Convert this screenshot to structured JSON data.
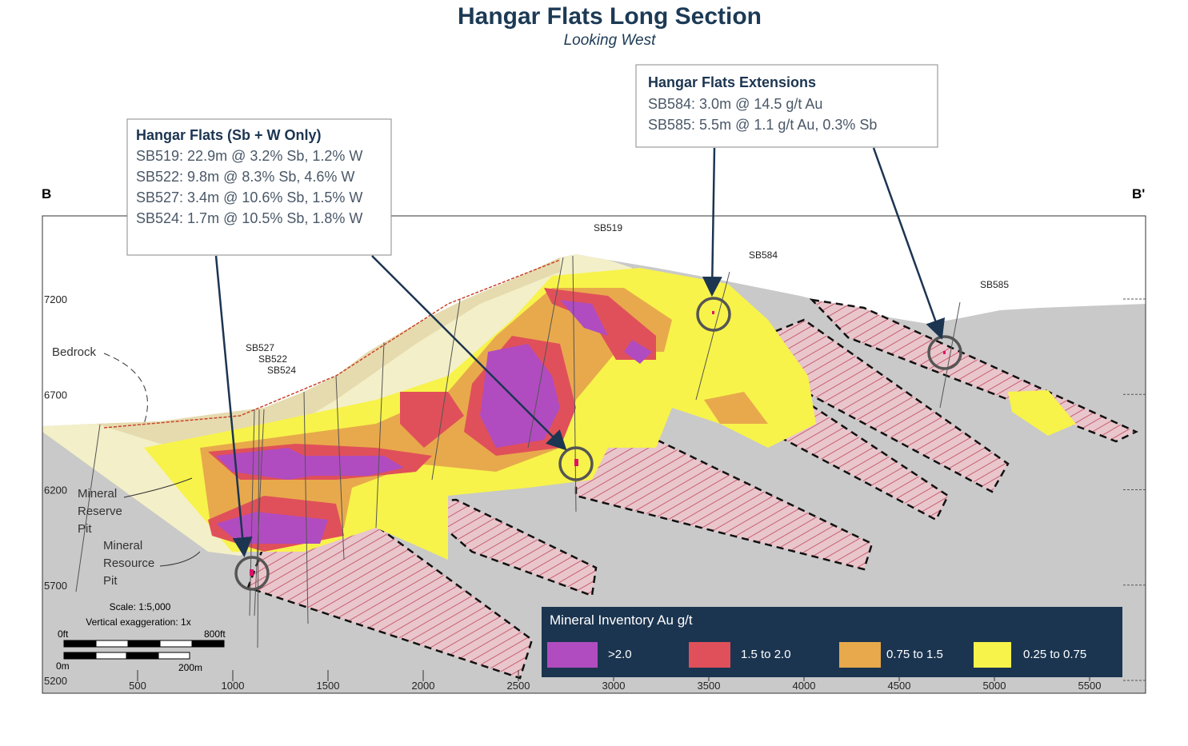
{
  "title": "Hangar Flats Long Section",
  "subtitle": "Looking West",
  "section_ends": [
    "B",
    "B'"
  ],
  "elevation_labels": [
    7200,
    6700,
    6200,
    5700,
    5200
  ],
  "distance_labels": [
    500,
    1000,
    1500,
    2000,
    2500,
    3000,
    3500,
    4000,
    4500,
    5000,
    5500
  ],
  "callouts": [
    {
      "title": "Hangar Flats (Sb + W Only)",
      "lines": [
        "SB519: 22.9m @ 3.2% Sb, 1.2% W",
        "SB522: 9.8m @ 8.3% Sb, 4.6% W",
        "SB527: 3.4m @ 10.6% Sb, 1.5% W",
        "SB524: 1.7m @ 10.5% Sb, 1.8% W"
      ]
    },
    {
      "title": "Hangar Flats Extensions",
      "lines": [
        "SB584: 3.0m @ 14.5 g/t Au",
        "SB585: 5.5m @ 1.1 g/t Au, 0.3% Sb"
      ]
    }
  ],
  "drill_holes": [
    "SB519",
    "SB584",
    "SB585",
    "SB527",
    "SB522",
    "SB524"
  ],
  "annotations": {
    "bedrock": "Bedrock",
    "reserve_pit": [
      "Mineral",
      "Reserve",
      "Pit"
    ],
    "resource_pit": [
      "Mineral",
      "Resource",
      "Pit"
    ]
  },
  "scale": {
    "ratio": "Scale: 1:5,000",
    "exaggeration": "Vertical exaggeration: 1x",
    "feet": [
      "0ft",
      "800ft"
    ],
    "meters": [
      "0m",
      "200m"
    ]
  },
  "legend": {
    "title": "Mineral Inventory Au g/t",
    "entries": [
      {
        "label": ">2.0",
        "color": "#b04cc0"
      },
      {
        "label": "1.5 to 2.0",
        "color": "#e0505a"
      },
      {
        "label": "0.75 to 1.5",
        "color": "#e8a94c"
      },
      {
        "label": "0.25 to 0.75",
        "color": "#f7f34a"
      }
    ]
  }
}
